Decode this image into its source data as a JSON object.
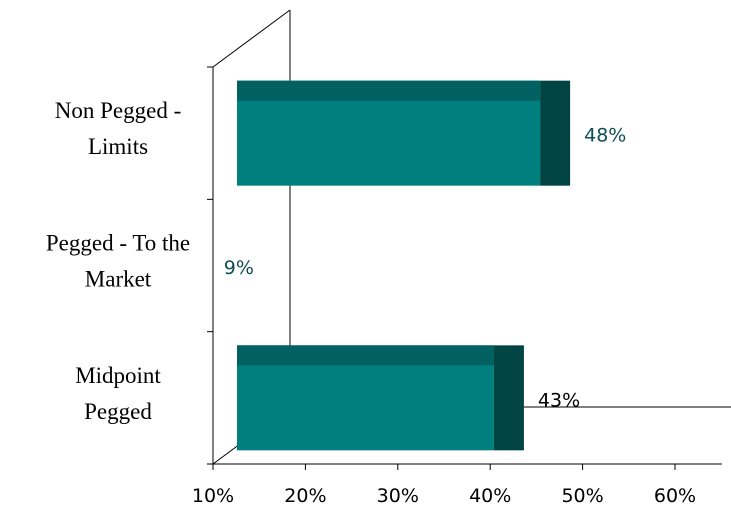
{
  "chart_data": {
    "type": "bar",
    "orientation": "horizontal",
    "style": "3d",
    "categories": [
      [
        "Non Pegged -",
        "Limits"
      ],
      [
        "Pegged - To the",
        "Market"
      ],
      [
        "Midpoint",
        "Pegged"
      ]
    ],
    "values": [
      48,
      9,
      43
    ],
    "data_labels": [
      "48%",
      "9%",
      "43%"
    ],
    "x_ticks": [
      "10%",
      "20%",
      "30%",
      "40%",
      "50%",
      "60%"
    ],
    "xlim": [
      10,
      60
    ],
    "grid": false,
    "legend": "none",
    "colors": {
      "bar_front": "#007F7F",
      "bar_top": "#006062",
      "bar_side": "#004444",
      "axis": "#000000",
      "label_teal": "#0E4E55",
      "label_black": "#000000"
    }
  }
}
